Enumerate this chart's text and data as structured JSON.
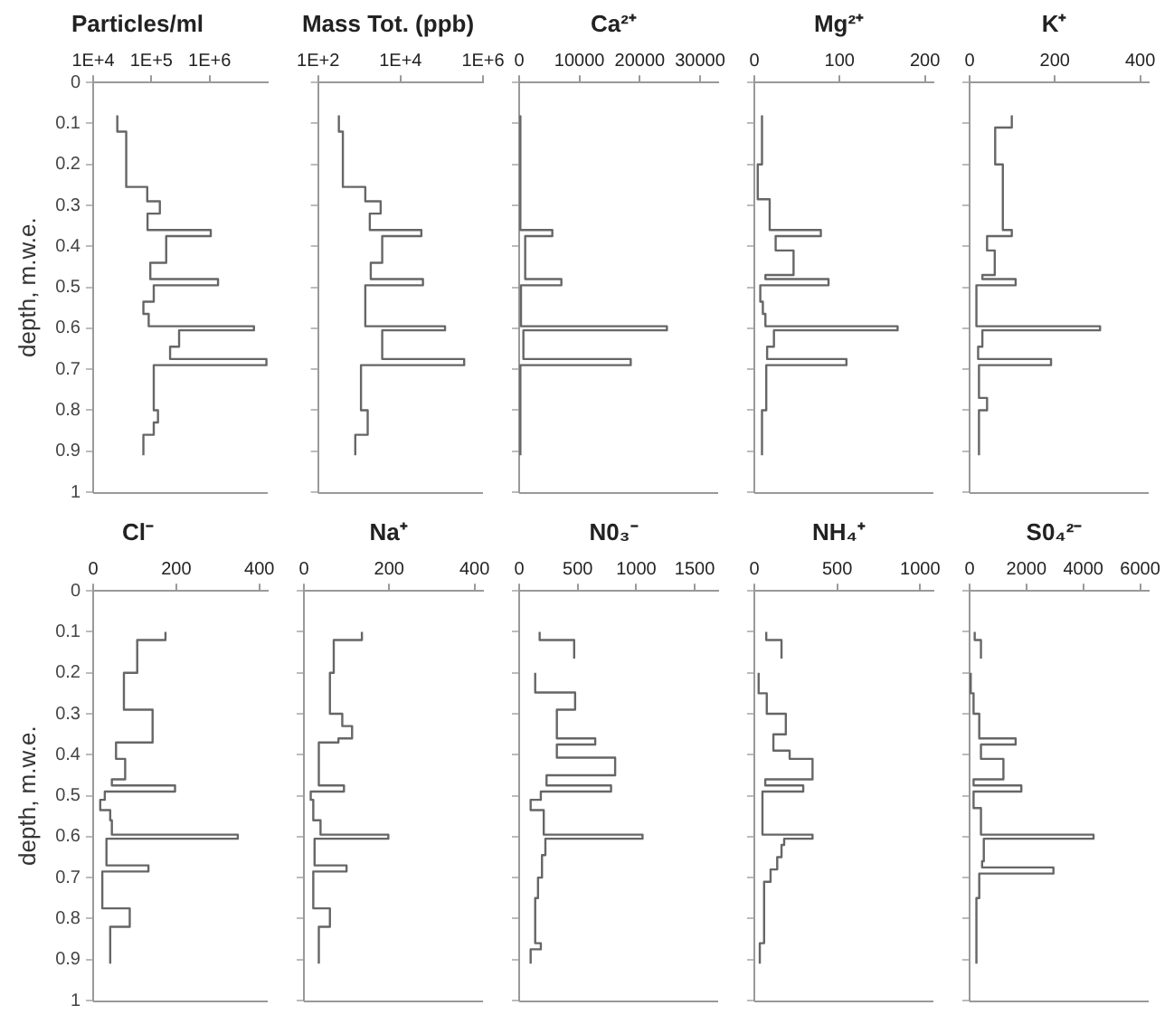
{
  "chart_data": [
    {
      "type": "step",
      "title": "Particles/ml",
      "ylabel": "depth, m.w.e.",
      "log": "x",
      "xlim": [
        10000,
        10000000
      ],
      "xticks": [
        {
          "value": 10000,
          "label": "1E+4"
        },
        {
          "value": 100000,
          "label": "1E+5"
        },
        {
          "value": 1000000,
          "label": "1E+6"
        }
      ],
      "ylim": [
        1,
        0
      ],
      "yticks": [
        0,
        0.1,
        0.2,
        0.3,
        0.4,
        0.5,
        0.6,
        0.7,
        0.8,
        0.9,
        1
      ],
      "series": [
        {
          "color": "#666666",
          "x": [
            26000,
            37000,
            85000,
            140000,
            86000,
            1050000,
            180000,
            96000,
            1400000,
            110000,
            73000,
            90000,
            5800000,
            300000,
            210000,
            9500000,
            110000,
            130000,
            110000,
            73000,
            73000
          ],
          "values": [
            0.08,
            0.12,
            0.255,
            0.29,
            0.32,
            0.36,
            0.375,
            0.44,
            0.48,
            0.495,
            0.535,
            0.565,
            0.595,
            0.605,
            0.645,
            0.675,
            0.69,
            0.8,
            0.83,
            0.86,
            0.91
          ]
        }
      ]
    },
    {
      "type": "step",
      "title": "Mass Tot. (ppb)",
      "log": "x",
      "tick_labels": "x",
      "xlim": [
        100,
        1000000
      ],
      "xticks": [
        {
          "value": 100,
          "label": "1E+2"
        },
        {
          "value": 10000,
          "label": "1E+4"
        },
        {
          "value": 1000000,
          "label": "1E+6"
        }
      ],
      "ylim": [
        1,
        0
      ],
      "yticks": [
        0,
        0.1,
        0.2,
        0.3,
        0.4,
        0.5,
        0.6,
        0.7,
        0.8,
        0.9,
        1
      ],
      "series": [
        {
          "color": "#666666",
          "x": [
            320,
            400,
            1400,
            3300,
            1800,
            32000,
            3600,
            1900,
            35000,
            1400,
            120000,
            3600,
            350000,
            1100,
            1600,
            800,
            800
          ],
          "values": [
            0.08,
            0.12,
            0.255,
            0.29,
            0.32,
            0.36,
            0.375,
            0.44,
            0.48,
            0.495,
            0.595,
            0.605,
            0.675,
            0.69,
            0.8,
            0.86,
            0.91
          ]
        }
      ]
    },
    {
      "type": "step",
      "title": "Ca²⁺",
      "tick_labels": "x",
      "xlim": [
        0,
        33000
      ],
      "xticks": [
        0,
        10000,
        20000,
        30000
      ],
      "ylim": [
        1,
        0
      ],
      "yticks": [
        0,
        0.1,
        0.2,
        0.3,
        0.4,
        0.5,
        0.6,
        0.7,
        0.8,
        0.9,
        1
      ],
      "series": [
        {
          "color": "#666666",
          "x": [
            200,
            5500,
            1000,
            7000,
            300,
            24500,
            700,
            18500,
            200,
            200
          ],
          "values": [
            0.08,
            0.36,
            0.375,
            0.48,
            0.495,
            0.595,
            0.605,
            0.675,
            0.69,
            0.91
          ]
        }
      ]
    },
    {
      "type": "step",
      "title": "Mg²⁺",
      "tick_labels": "x",
      "xlim": [
        0,
        210
      ],
      "xticks": [
        0,
        100,
        200
      ],
      "ylim": [
        1,
        0
      ],
      "yticks": [
        0,
        0.1,
        0.2,
        0.3,
        0.4,
        0.5,
        0.6,
        0.7,
        0.8,
        0.9,
        1
      ],
      "series": [
        {
          "color": "#666666",
          "x": [
            9,
            4,
            18,
            78,
            25,
            46,
            13,
            87,
            7,
            10,
            13,
            168,
            23,
            15,
            108,
            14,
            9,
            9
          ],
          "values": [
            0.08,
            0.2,
            0.285,
            0.36,
            0.375,
            0.41,
            0.47,
            0.48,
            0.495,
            0.535,
            0.565,
            0.595,
            0.605,
            0.645,
            0.675,
            0.69,
            0.8,
            0.91
          ]
        }
      ]
    },
    {
      "type": "step",
      "title": "K⁺",
      "tick_labels": "x",
      "xlim": [
        0,
        420
      ],
      "xticks": [
        0,
        200,
        400
      ],
      "ylim": [
        1,
        0
      ],
      "yticks": [
        0,
        0.1,
        0.2,
        0.3,
        0.4,
        0.5,
        0.6,
        0.7,
        0.8,
        0.9,
        1
      ],
      "series": [
        {
          "color": "#666666",
          "x": [
            99,
            60,
            78,
            99,
            41,
            59,
            30,
            108,
            16,
            306,
            30,
            20,
            191,
            22,
            41,
            22,
            22
          ],
          "values": [
            0.08,
            0.11,
            0.2,
            0.36,
            0.375,
            0.41,
            0.47,
            0.48,
            0.495,
            0.595,
            0.605,
            0.645,
            0.675,
            0.69,
            0.77,
            0.8,
            0.91
          ]
        }
      ]
    },
    {
      "type": "step",
      "title": "Cl⁻",
      "ylabel": "depth, m.w.e.",
      "xlim": [
        0,
        420
      ],
      "xticks": [
        0,
        200,
        400
      ],
      "ylim": [
        1,
        0
      ],
      "yticks": [
        0,
        0.1,
        0.2,
        0.3,
        0.4,
        0.5,
        0.6,
        0.7,
        0.8,
        0.9,
        1
      ],
      "series": [
        {
          "color": "#666666",
          "x": [
            174,
            106,
            74,
            143,
            55,
            77,
            45,
            197,
            28,
            17,
            41,
            45,
            348,
            32,
            133,
            22,
            88,
            41,
            41
          ],
          "values": [
            0.1,
            0.12,
            0.2,
            0.29,
            0.37,
            0.41,
            0.46,
            0.475,
            0.49,
            0.51,
            0.535,
            0.56,
            0.595,
            0.605,
            0.67,
            0.685,
            0.775,
            0.82,
            0.91
          ]
        }
      ]
    },
    {
      "type": "step",
      "title": "Na⁺",
      "tick_labels": "x",
      "xlim": [
        0,
        420
      ],
      "xticks": [
        0,
        200,
        400
      ],
      "ylim": [
        1,
        0
      ],
      "yticks": [
        0,
        0.1,
        0.2,
        0.3,
        0.4,
        0.5,
        0.6,
        0.7,
        0.8,
        0.9,
        1
      ],
      "series": [
        {
          "color": "#666666",
          "x": [
            136,
            70,
            61,
            90,
            113,
            81,
            35,
            94,
            16,
            22,
            39,
            198,
            25,
            100,
            22,
            61,
            35,
            35
          ],
          "values": [
            0.1,
            0.12,
            0.2,
            0.3,
            0.33,
            0.36,
            0.37,
            0.475,
            0.49,
            0.51,
            0.56,
            0.595,
            0.605,
            0.67,
            0.685,
            0.775,
            0.82,
            0.91
          ]
        }
      ]
    },
    {
      "type": "step",
      "title": "N0₃⁻",
      "tick_labels": "x",
      "xlim": [
        0,
        1700
      ],
      "xticks": [
        0,
        500,
        1000,
        1500
      ],
      "ylim": [
        1,
        0
      ],
      "yticks": [
        0,
        0.1,
        0.2,
        0.3,
        0.4,
        0.5,
        0.6,
        0.7,
        0.8,
        0.9,
        1
      ],
      "series": [
        {
          "color": "#666666",
          "x": [
            175,
            470,
            470,
            null,
            137,
            478,
            322,
            650,
            322,
            820,
            234,
            785,
            185,
            98,
            210,
            1054,
            224,
            195,
            161,
            137,
            185,
            98,
            98
          ],
          "values": [
            0.1,
            0.12,
            0.165,
            null,
            0.2,
            0.248,
            0.29,
            0.36,
            0.375,
            0.407,
            0.45,
            0.475,
            0.49,
            0.51,
            0.535,
            0.595,
            0.605,
            0.645,
            0.7,
            0.75,
            0.86,
            0.875,
            0.91
          ]
        }
      ]
    },
    {
      "type": "step",
      "title": "NH₄⁺",
      "tick_labels": "x",
      "xlim": [
        0,
        1080
      ],
      "xticks": [
        0,
        500,
        1000
      ],
      "ylim": [
        1,
        0
      ],
      "yticks": [
        0,
        0.1,
        0.2,
        0.3,
        0.4,
        0.5,
        0.6,
        0.7,
        0.8,
        0.9,
        1
      ],
      "series": [
        {
          "color": "#666666",
          "x": [
            72,
            164,
            164,
            null,
            26,
            75,
            190,
            115,
            213,
            351,
            66,
            295,
            49,
            351,
            180,
            164,
            138,
            98,
            59,
            33,
            33
          ],
          "values": [
            0.1,
            0.12,
            0.165,
            null,
            0.2,
            0.25,
            0.3,
            0.35,
            0.39,
            0.41,
            0.46,
            0.475,
            0.49,
            0.595,
            0.605,
            0.62,
            0.65,
            0.68,
            0.71,
            0.86,
            0.91
          ]
        }
      ]
    },
    {
      "type": "step",
      "title": "S0₄²⁻",
      "tick_labels": "x",
      "xlim": [
        0,
        6300
      ],
      "xticks": [
        0,
        2000,
        4000,
        6000
      ],
      "ylim": [
        1,
        0
      ],
      "yticks": [
        0,
        0.1,
        0.2,
        0.3,
        0.4,
        0.5,
        0.6,
        0.7,
        0.8,
        0.9,
        1
      ],
      "series": [
        {
          "color": "#666666",
          "x": [
            180,
            400,
            400,
            null,
            40,
            140,
            340,
            1620,
            400,
            1190,
            140,
            1820,
            140,
            400,
            4360,
            500,
            440,
            2950,
            340,
            240,
            240
          ],
          "values": [
            0.1,
            0.12,
            0.165,
            null,
            0.2,
            0.25,
            0.3,
            0.36,
            0.375,
            0.41,
            0.46,
            0.475,
            0.49,
            0.53,
            0.595,
            0.605,
            0.66,
            0.675,
            0.69,
            0.75,
            0.91
          ]
        }
      ]
    }
  ]
}
